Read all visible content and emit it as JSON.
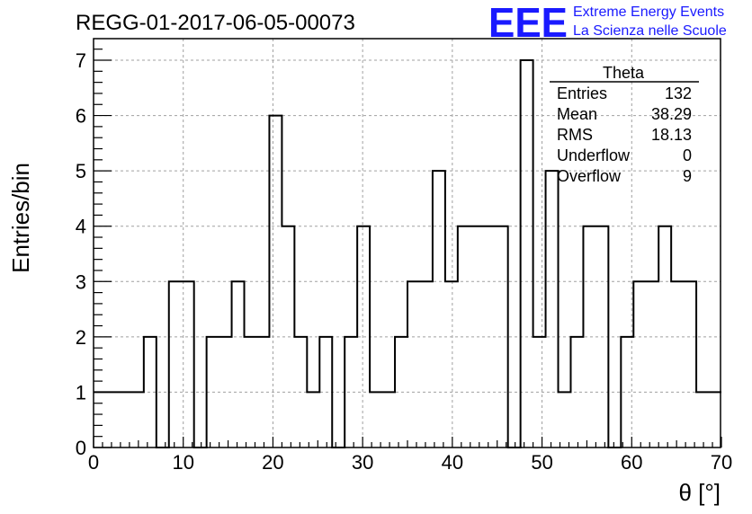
{
  "chart_data": {
    "type": "bar",
    "style": "step-histogram",
    "title": "REGG-01-2017-06-05-00073",
    "xlabel": "θ [°]",
    "ylabel": "Entries/bin",
    "xlim": [
      0,
      70
    ],
    "ylim": [
      0,
      7.5
    ],
    "grid": true,
    "bin_width": 1.4,
    "x_ticks": [
      0,
      10,
      20,
      30,
      40,
      50,
      60,
      70
    ],
    "y_ticks": [
      0,
      1,
      2,
      3,
      4,
      5,
      6,
      7
    ],
    "bin_edges_start": 0,
    "values": [
      1,
      1,
      1,
      1,
      2,
      0,
      3,
      3,
      0,
      2,
      2,
      3,
      2,
      2,
      6,
      4,
      2,
      1,
      2,
      0,
      2,
      4,
      1,
      1,
      2,
      3,
      3,
      5,
      3,
      4,
      4,
      4,
      4,
      0,
      7,
      2,
      5,
      1,
      2,
      4,
      4,
      0,
      2,
      3,
      3,
      4,
      3,
      3,
      1,
      1
    ],
    "line_color": "#000000",
    "grid_color": "#a0a0a0",
    "stats_box": {
      "title": "Theta",
      "rows": [
        {
          "label": "Entries",
          "value": "132"
        },
        {
          "label": "Mean",
          "value": "38.29"
        },
        {
          "label": "RMS",
          "value": "18.13"
        },
        {
          "label": "Underflow",
          "value": "0"
        },
        {
          "label": "Overflow",
          "value": "9"
        }
      ]
    }
  },
  "logo": {
    "mark": "EEE",
    "line1": "Extreme Energy Events",
    "line2": "La Scienza nelle Scuole",
    "color": "#1a1aff"
  }
}
